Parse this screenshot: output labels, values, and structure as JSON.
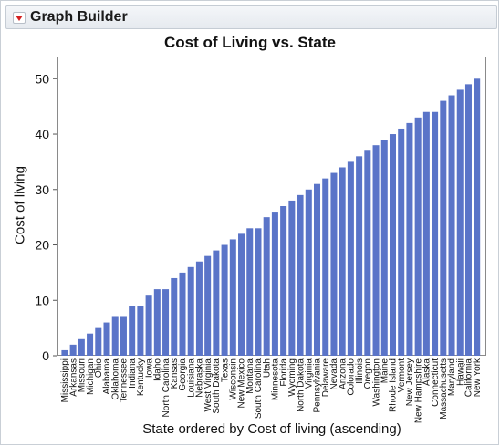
{
  "header": {
    "title": "Graph Builder"
  },
  "chart_data": {
    "type": "bar",
    "title": "Cost of Living vs. State",
    "xlabel": "State ordered by Cost of living (ascending)",
    "ylabel": "Cost of living",
    "ylim": [
      0,
      54
    ],
    "yticks": [
      0,
      10,
      20,
      30,
      40,
      50
    ],
    "bar_color": "#5a74c8",
    "grid": false,
    "categories": [
      "Mississippi",
      "Arkansas",
      "Missouri",
      "Michigan",
      "Ohio",
      "Alabama",
      "Oklahoma",
      "Tennessee",
      "Indiana",
      "Kentucky",
      "Iowa",
      "Idaho",
      "North Carolina",
      "Kansas",
      "Georgia",
      "Louisiana",
      "Nebraska",
      "West Virginia",
      "South Dakota",
      "Texas",
      "Wisconsin",
      "New Mexico",
      "Montana",
      "South Carolina",
      "Utah",
      "Minnesota",
      "Florida",
      "Wyoming",
      "North Dakota",
      "Virginia",
      "Pennsylvania",
      "Delaware",
      "Nevada",
      "Arizona",
      "Colorado",
      "Illinois",
      "Oregon",
      "Washington",
      "Maine",
      "Rhode Island",
      "Vermont",
      "New Jersey",
      "New Hampshire",
      "Alaska",
      "Connecticut",
      "Massachusetts",
      "Maryland",
      "Hawaii",
      "California",
      "New York"
    ],
    "values": [
      1,
      2,
      3,
      4,
      5,
      6,
      7,
      7,
      9,
      9,
      11,
      12,
      12,
      14,
      15,
      16,
      17,
      18,
      19,
      20,
      21,
      22,
      23,
      23,
      25,
      26,
      27,
      28,
      29,
      30,
      31,
      32,
      33,
      34,
      35,
      36,
      37,
      38,
      39,
      40,
      41,
      42,
      43,
      44,
      44,
      46,
      47,
      48,
      49,
      50
    ]
  }
}
